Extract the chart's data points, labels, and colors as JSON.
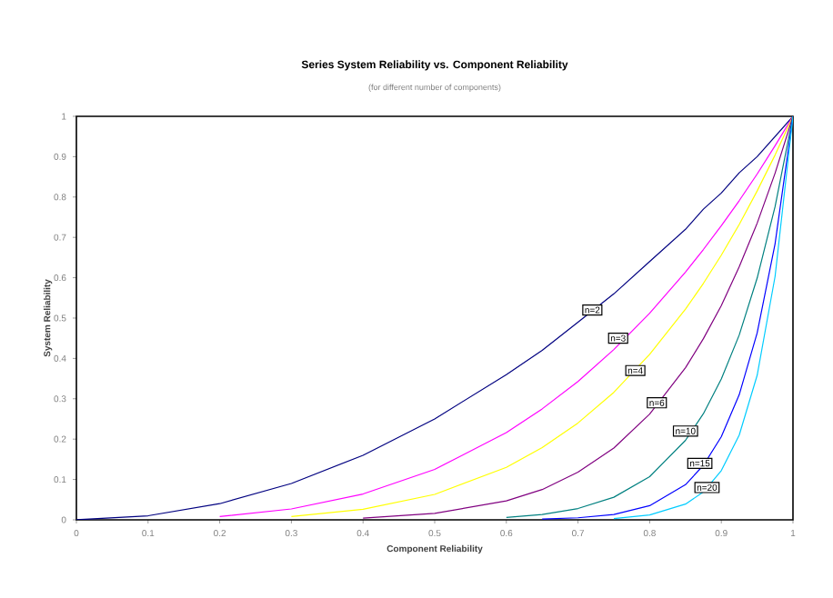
{
  "chart_data": {
    "type": "line",
    "title": "Series System Reliability vs. Component Reliability",
    "subtitle": "(for different number of components)",
    "xlabel": "Component Reliability",
    "ylabel": "System Reliability",
    "x": [
      0,
      0.1,
      0.2,
      0.3,
      0.4,
      0.5,
      0.6,
      0.65,
      0.7,
      0.75,
      0.8,
      0.85,
      0.875,
      0.9,
      0.925,
      0.95,
      0.975,
      1
    ],
    "series": [
      {
        "name": "n=2",
        "color": "#000080",
        "values": [
          0,
          0.01,
          0.04,
          0.09,
          0.16,
          0.25,
          0.36,
          0.42,
          0.49,
          0.56,
          0.64,
          0.72,
          0.77,
          0.81,
          0.86,
          0.9,
          0.95,
          1
        ]
      },
      {
        "name": "n=3",
        "color": "#ff00ff",
        "values": [
          null,
          null,
          0.008,
          0.027,
          0.064,
          0.125,
          0.216,
          0.275,
          0.343,
          0.422,
          0.512,
          0.614,
          0.67,
          0.729,
          0.791,
          0.857,
          0.927,
          1
        ]
      },
      {
        "name": "n=4",
        "color": "#ffff00",
        "values": [
          null,
          null,
          null,
          0.008,
          0.026,
          0.063,
          0.13,
          0.179,
          0.24,
          0.316,
          0.41,
          0.522,
          0.586,
          0.656,
          0.732,
          0.815,
          0.904,
          1
        ]
      },
      {
        "name": "n=6",
        "color": "#800080",
        "values": [
          null,
          null,
          null,
          null,
          0.004,
          0.016,
          0.047,
          0.075,
          0.118,
          0.178,
          0.262,
          0.377,
          0.449,
          0.531,
          0.627,
          0.735,
          0.859,
          1
        ]
      },
      {
        "name": "n=10",
        "color": "#008080",
        "values": [
          null,
          null,
          null,
          null,
          null,
          null,
          0.006,
          0.013,
          0.028,
          0.056,
          0.107,
          0.197,
          0.263,
          0.349,
          0.458,
          0.599,
          0.776,
          1
        ]
      },
      {
        "name": "n=15",
        "color": "#0000ff",
        "values": [
          null,
          null,
          null,
          null,
          null,
          null,
          null,
          0.002,
          0.005,
          0.013,
          0.035,
          0.087,
          0.135,
          0.206,
          0.31,
          0.463,
          0.684,
          1
        ]
      },
      {
        "name": "n=20",
        "color": "#00ccff",
        "values": [
          null,
          null,
          null,
          null,
          null,
          null,
          null,
          null,
          null,
          0.003,
          0.012,
          0.039,
          0.069,
          0.122,
          0.21,
          0.358,
          0.603,
          1
        ]
      }
    ],
    "xlim": [
      0,
      1
    ],
    "ylim": [
      0,
      1
    ],
    "xticks": [
      0,
      0.1,
      0.2,
      0.3,
      0.4,
      0.5,
      0.6,
      0.7,
      0.8,
      0.9,
      1
    ],
    "yticks": [
      0,
      0.1,
      0.2,
      0.3,
      0.4,
      0.5,
      0.6,
      0.7,
      0.8,
      0.9,
      1
    ],
    "grid": false,
    "legend": false,
    "marker": "none",
    "line_style": "solid"
  }
}
